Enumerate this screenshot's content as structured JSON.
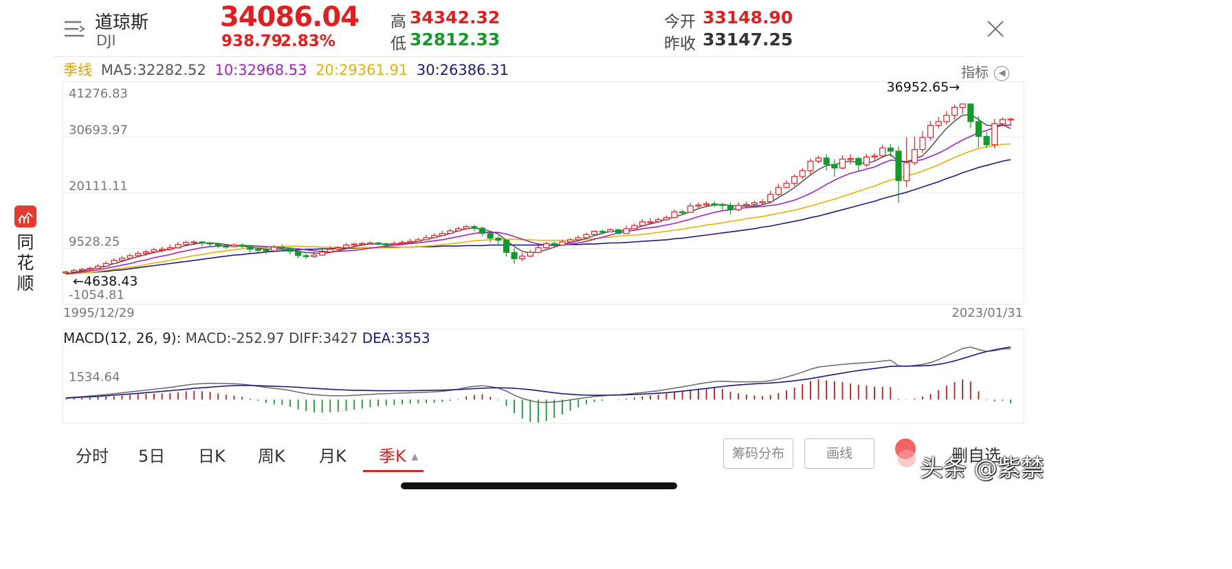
{
  "header": {
    "name": "道琼斯",
    "symbol": "DJI",
    "price": "34086.04",
    "change": "938.79",
    "change_pct": "2.83%",
    "high_label": "高",
    "high": "34342.32",
    "low_label": "低",
    "low": "32812.33",
    "open_label": "今开",
    "open": "33148.90",
    "prev_close_label": "昨收",
    "prev_close": "33147.25"
  },
  "ma_bar": {
    "period": "季线",
    "ma5": "MA5:32282.52",
    "ma10": "10:32968.53",
    "ma20": "20:29361.91",
    "ma30": "30:26386.31",
    "indicator_label": "指标"
  },
  "sidebar": {
    "label": "同花顺"
  },
  "watermark": "头条 @紫禁",
  "colors": {
    "up": "#e02020",
    "down": "#139a2a",
    "ma5": "#555555",
    "ma10": "#a020c8",
    "ma20": "#e8b000",
    "ma30": "#1a1a7a"
  },
  "tabs": [
    {
      "label": "分时"
    },
    {
      "label": "5日"
    },
    {
      "label": "日K"
    },
    {
      "label": "周K"
    },
    {
      "label": "月K"
    },
    {
      "label": "季K"
    }
  ],
  "buttons": {
    "chips": "筹码分布",
    "draw": "画线",
    "remove_watch": "删自选"
  },
  "chart_data": [
    {
      "type": "candlestick",
      "title": "",
      "x_range": [
        "1995/12/29",
        "2023/01/31"
      ],
      "y_ticks": [
        "41276.83",
        "30693.97",
        "20111.11",
        "9528.25",
        "-1054.81"
      ],
      "ylim": [
        -1054.81,
        41276.83
      ],
      "max_marker": "36952.65→",
      "min_marker": "←4638.43",
      "close": [
        5100,
        5400,
        5600,
        5800,
        6200,
        6700,
        7300,
        7700,
        8200,
        8600,
        8900,
        9300,
        9400,
        9700,
        10300,
        10700,
        10800,
        10600,
        10400,
        10000,
        9900,
        10200,
        10100,
        9400,
        9300,
        9100,
        9800,
        9600,
        9000,
        8200,
        8000,
        8300,
        8900,
        9400,
        9700,
        10200,
        10400,
        10500,
        10600,
        10400,
        10300,
        10500,
        10700,
        10900,
        11200,
        11600,
        12000,
        12400,
        12900,
        13300,
        13700,
        13400,
        12400,
        11500,
        11100,
        8800,
        7600,
        8100,
        8800,
        9700,
        10500,
        10200,
        10800,
        11200,
        11600,
        12200,
        12800,
        12700,
        13100,
        12400,
        13300,
        13900,
        14600,
        14600,
        15000,
        15400,
        16500,
        16400,
        17600,
        17800,
        18000,
        17900,
        17700,
        16900,
        17700,
        17900,
        18200,
        18400,
        19800,
        21100,
        21900,
        23200,
        24300,
        26100,
        26700,
        25500,
        24800,
        26500,
        26600,
        25400,
        26900,
        27100,
        28600,
        28000,
        22400,
        25800,
        28300,
        30600,
        32900,
        33600,
        34800,
        36300,
        36950,
        33600,
        30800,
        29200,
        33200,
        34000,
        34086
      ],
      "high": [
        5300,
        5700,
        5900,
        6100,
        6600,
        7100,
        7700,
        8100,
        8600,
        9000,
        9300,
        9700,
        9900,
        10300,
        10800,
        11000,
        11100,
        10900,
        10800,
        10400,
        10300,
        10500,
        10500,
        10000,
        9800,
        9700,
        10200,
        10300,
        9800,
        9200,
        8600,
        8900,
        9400,
        9900,
        10000,
        10600,
        10700,
        10800,
        10900,
        10800,
        10700,
        10900,
        11100,
        11400,
        11600,
        12100,
        12400,
        12900,
        13300,
        13700,
        14000,
        14000,
        13700,
        12600,
        12000,
        11200,
        9600,
        8700,
        9300,
        10200,
        10800,
        10900,
        11200,
        11500,
        12000,
        12500,
        13000,
        13200,
        13400,
        13300,
        13900,
        14300,
        15100,
        15300,
        15400,
        15800,
        16900,
        16900,
        18200,
        18300,
        18500,
        18500,
        18200,
        18300,
        18300,
        18400,
        18600,
        18900,
        20500,
        21800,
        22500,
        23600,
        24800,
        26600,
        27100,
        27400,
        26500,
        27200,
        27400,
        26900,
        27500,
        27600,
        29200,
        29300,
        28900,
        30600,
        30800,
        31800,
        33700,
        34500,
        35600,
        36800,
        36950,
        36900,
        34600,
        31600,
        34100,
        34400,
        34342
      ],
      "low": [
        4638,
        5000,
        5200,
        5400,
        5800,
        6200,
        6600,
        7100,
        7500,
        8000,
        8200,
        8600,
        8800,
        9100,
        9500,
        10100,
        10200,
        10000,
        9900,
        9600,
        9500,
        9800,
        9600,
        8800,
        8700,
        8500,
        9000,
        9100,
        8400,
        7700,
        7600,
        7800,
        8200,
        8700,
        9200,
        9600,
        9900,
        10200,
        10300,
        10100,
        10000,
        10200,
        10400,
        10600,
        10800,
        11100,
        11600,
        11900,
        12300,
        12800,
        13100,
        12800,
        11900,
        10700,
        10400,
        8000,
        6600,
        7200,
        7900,
        8600,
        9500,
        9700,
        10100,
        10600,
        10900,
        11500,
        12100,
        12300,
        12600,
        12200,
        12700,
        13300,
        13800,
        14100,
        14400,
        14800,
        15600,
        15900,
        16700,
        17200,
        17600,
        17400,
        16800,
        16000,
        16600,
        17200,
        17500,
        17900,
        18100,
        19500,
        20900,
        21400,
        22700,
        23500,
        25700,
        24300,
        23200,
        24600,
        25500,
        24100,
        25000,
        26200,
        26800,
        26900,
        18200,
        21200,
        25300,
        27600,
        30000,
        32300,
        33000,
        34000,
        35100,
        32400,
        28700,
        28600,
        28500,
        32700,
        32812
      ],
      "ma5": [
        4700,
        5000,
        5300,
        5600,
        5900,
        6200,
        6700,
        7100,
        7600,
        8000,
        8400,
        8800,
        9100,
        9400,
        9800,
        10100,
        10400,
        10600,
        10600,
        10500,
        10300,
        10100,
        10000,
        9800,
        9600,
        9400,
        9500,
        9400,
        9300,
        9000,
        8800,
        8700,
        8600,
        8800,
        9100,
        9500,
        9900,
        10200,
        10400,
        10400,
        10400,
        10400,
        10500,
        10700,
        10900,
        11300,
        11600,
        12000,
        12400,
        12900,
        13300,
        13400,
        13200,
        12800,
        12300,
        11100,
        9900,
        9000,
        8700,
        8900,
        9300,
        9800,
        10300,
        10700,
        11000,
        11500,
        12000,
        12400,
        12800,
        12800,
        13100,
        13400,
        13800,
        14200,
        14600,
        15100,
        15500,
        16000,
        16500,
        17100,
        17500,
        17800,
        17900,
        17700,
        17600,
        17600,
        17600,
        17800,
        18300,
        19200,
        20100,
        21100,
        22300,
        23500,
        24500,
        25300,
        25400,
        25900,
        26100,
        25800,
        25700,
        26100,
        26900,
        27400,
        26000,
        26000,
        26500,
        27100,
        28700,
        30600,
        32300,
        33700,
        34800,
        34900,
        34000,
        32900,
        32800,
        33000,
        32282
      ],
      "ma10": [
        4700,
        4900,
        5100,
        5300,
        5500,
        5800,
        6100,
        6400,
        6700,
        7100,
        7400,
        7800,
        8100,
        8400,
        8800,
        9100,
        9400,
        9700,
        9900,
        10000,
        10100,
        10100,
        10100,
        10100,
        10000,
        9900,
        9800,
        9700,
        9600,
        9500,
        9300,
        9100,
        9000,
        9000,
        9000,
        9100,
        9200,
        9400,
        9600,
        9800,
        10000,
        10200,
        10300,
        10500,
        10600,
        10800,
        11000,
        11200,
        11500,
        11800,
        12100,
        12400,
        12600,
        12600,
        12600,
        12300,
        11800,
        11300,
        10800,
        10400,
        10200,
        10100,
        10200,
        10400,
        10600,
        10900,
        11300,
        11700,
        12100,
        12500,
        12800,
        13000,
        13300,
        13500,
        13700,
        14000,
        14300,
        14700,
        15100,
        15600,
        16000,
        16400,
        16700,
        16900,
        17100,
        17300,
        17400,
        17500,
        17700,
        17900,
        18300,
        18700,
        19300,
        20000,
        20800,
        21700,
        22500,
        23200,
        23800,
        24200,
        24600,
        25000,
        25700,
        26300,
        26200,
        26000,
        26100,
        26400,
        27000,
        27600,
        28400,
        29300,
        30100,
        30800,
        31500,
        31900,
        32500,
        32900,
        32968
      ],
      "ma20": [
        4700,
        4800,
        4900,
        5000,
        5200,
        5400,
        5600,
        5800,
        6000,
        6200,
        6500,
        6800,
        7000,
        7300,
        7600,
        7900,
        8200,
        8400,
        8700,
        8900,
        9100,
        9300,
        9500,
        9600,
        9700,
        9800,
        9900,
        9900,
        10000,
        10000,
        9900,
        9900,
        9800,
        9800,
        9800,
        9700,
        9700,
        9700,
        9700,
        9700,
        9700,
        9700,
        9800,
        9800,
        9900,
        10000,
        10100,
        10300,
        10400,
        10600,
        10800,
        11000,
        11100,
        11200,
        11300,
        11300,
        11300,
        11200,
        11200,
        11100,
        11100,
        11100,
        11100,
        11100,
        11200,
        11300,
        11400,
        11600,
        11700,
        11900,
        12000,
        12100,
        12200,
        12400,
        12600,
        12800,
        13000,
        13200,
        13500,
        13700,
        14000,
        14200,
        14400,
        14700,
        14900,
        15200,
        15400,
        15600,
        15900,
        16200,
        16500,
        16800,
        17200,
        17600,
        18000,
        18500,
        18900,
        19400,
        19900,
        20400,
        20900,
        21400,
        22000,
        22500,
        22900,
        23300,
        23700,
        24200,
        24800,
        25400,
        26100,
        26800,
        27400,
        28000,
        28500,
        28800,
        29100,
        29300,
        29361
      ],
      "ma30": [
        4700,
        4800,
        4900,
        5000,
        5100,
        5200,
        5400,
        5500,
        5700,
        5900,
        6100,
        6300,
        6500,
        6700,
        6900,
        7100,
        7300,
        7500,
        7700,
        7900,
        8100,
        8300,
        8400,
        8600,
        8700,
        8900,
        9000,
        9100,
        9200,
        9300,
        9400,
        9400,
        9500,
        9500,
        9600,
        9600,
        9600,
        9700,
        9700,
        9700,
        9800,
        9800,
        9800,
        9800,
        9900,
        9900,
        9900,
        10000,
        10000,
        10000,
        10100,
        10100,
        10100,
        10200,
        10200,
        10200,
        10200,
        10200,
        10200,
        10200,
        10200,
        10200,
        10300,
        10300,
        10300,
        10400,
        10400,
        10500,
        10600,
        10600,
        10700,
        10800,
        10900,
        11000,
        11100,
        11200,
        11400,
        11500,
        11700,
        11900,
        12100,
        12300,
        12500,
        12700,
        12900,
        13100,
        13300,
        13600,
        13800,
        14100,
        14400,
        14700,
        15000,
        15400,
        15700,
        16100,
        16500,
        16900,
        17300,
        17700,
        18100,
        18500,
        19000,
        19400,
        19800,
        20200,
        20700,
        21200,
        21700,
        22200,
        22800,
        23300,
        23900,
        24400,
        24900,
        25300,
        25700,
        26100,
        26386
      ]
    },
    {
      "type": "macd",
      "title": "MACD(12, 26, 9):",
      "macd_label": "MACD:-252.97",
      "diff_label": "DIFF:3427",
      "dea_label": "DEA:3553",
      "y_tick": "1534.64",
      "ylim": [
        -1600,
        4800
      ],
      "diff": [
        120,
        160,
        200,
        240,
        290,
        340,
        400,
        460,
        520,
        580,
        630,
        700,
        760,
        820,
        900,
        980,
        1050,
        1080,
        1100,
        1090,
        1080,
        1070,
        1040,
        980,
        900,
        820,
        760,
        700,
        620,
        500,
        400,
        330,
        290,
        270,
        260,
        270,
        290,
        320,
        350,
        380,
        400,
        420,
        440,
        460,
        480,
        500,
        520,
        560,
        620,
        700,
        820,
        900,
        940,
        880,
        780,
        580,
        300,
        80,
        -80,
        -180,
        -190,
        -160,
        -100,
        -20,
        60,
        140,
        210,
        250,
        300,
        320,
        360,
        420,
        480,
        540,
        600,
        680,
        780,
        860,
        960,
        1060,
        1140,
        1220,
        1240,
        1210,
        1200,
        1200,
        1200,
        1210,
        1280,
        1380,
        1520,
        1680,
        1860,
        2050,
        2200,
        2260,
        2320,
        2380,
        2420,
        2460,
        2500,
        2540,
        2600,
        2660,
        2280,
        2250,
        2300,
        2380,
        2500,
        2700,
        2950,
        3200,
        3450,
        3550,
        3380,
        3250,
        3300,
        3420,
        3427
      ],
      "dea": [
        100,
        130,
        160,
        190,
        220,
        260,
        300,
        340,
        380,
        420,
        470,
        510,
        560,
        600,
        650,
        700,
        760,
        800,
        840,
        880,
        920,
        940,
        950,
        950,
        940,
        920,
        900,
        880,
        860,
        830,
        790,
        760,
        730,
        700,
        670,
        650,
        630,
        620,
        610,
        600,
        600,
        600,
        600,
        600,
        610,
        620,
        630,
        640,
        660,
        680,
        710,
        740,
        770,
        790,
        800,
        790,
        760,
        720,
        670,
        600,
        530,
        460,
        400,
        360,
        320,
        300,
        290,
        290,
        300,
        310,
        330,
        350,
        370,
        400,
        430,
        470,
        520,
        570,
        630,
        690,
        750,
        820,
        880,
        940,
        990,
        1030,
        1060,
        1090,
        1120,
        1160,
        1210,
        1270,
        1340,
        1420,
        1510,
        1610,
        1700,
        1790,
        1880,
        1960,
        2030,
        2100,
        2170,
        2240,
        2260,
        2260,
        2270,
        2280,
        2310,
        2380,
        2480,
        2610,
        2770,
        2940,
        3100,
        3240,
        3360,
        3460,
        3553
      ],
      "bars": [
        60,
        90,
        110,
        130,
        170,
        200,
        230,
        280,
        330,
        380,
        390,
        400,
        420,
        450,
        500,
        560,
        590,
        560,
        520,
        420,
        330,
        260,
        180,
        60,
        -80,
        -220,
        -320,
        -360,
        -480,
        -660,
        -780,
        -860,
        -880,
        -860,
        -820,
        -760,
        -680,
        -600,
        -520,
        -440,
        -400,
        -360,
        -320,
        -280,
        -260,
        -240,
        -220,
        -160,
        -80,
        40,
        220,
        320,
        340,
        180,
        -40,
        -420,
        -920,
        -1280,
        -1500,
        -1560,
        -1440,
        -1240,
        -1000,
        -760,
        -520,
        -320,
        -160,
        -80,
        0,
        20,
        60,
        140,
        220,
        280,
        340,
        420,
        520,
        580,
        660,
        740,
        780,
        800,
        720,
        540,
        420,
        340,
        280,
        240,
        320,
        440,
        620,
        820,
        1040,
        1260,
        1380,
        1300,
        1240,
        1180,
        1080,
        1000,
        940,
        880,
        860,
        840,
        40,
        -20,
        60,
        200,
        380,
        640,
        940,
        1180,
        1360,
        1220,
        560,
        -40,
        -120,
        -80,
        -252.97
      ]
    }
  ]
}
